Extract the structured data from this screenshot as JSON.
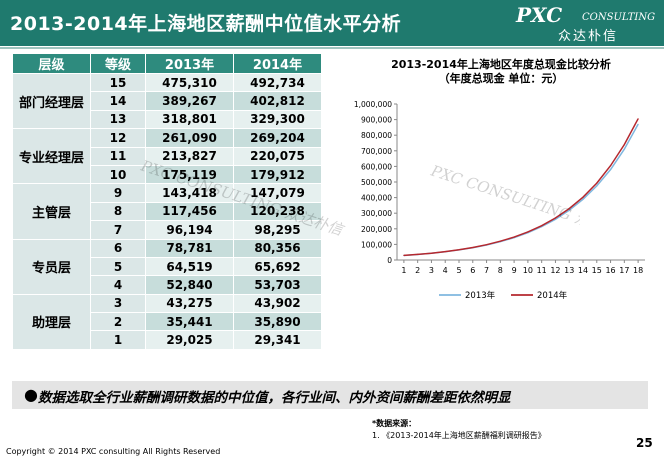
{
  "header": {
    "title": "2013-2014年上海地区薪酬中位值水平分析",
    "logo_text": "PXC",
    "logo_sub": "CONSULTING",
    "logo_cn": "众达朴信"
  },
  "table": {
    "headers": [
      "层级",
      "等级",
      "2013年",
      "2014年"
    ],
    "groups": [
      {
        "level": "部门经理层",
        "rows": [
          {
            "grade": "15",
            "y2013": "475,310",
            "y2014": "492,734"
          },
          {
            "grade": "14",
            "y2013": "389,267",
            "y2014": "402,812"
          },
          {
            "grade": "13",
            "y2013": "318,801",
            "y2014": "329,300"
          }
        ]
      },
      {
        "level": "专业经理层",
        "rows": [
          {
            "grade": "12",
            "y2013": "261,090",
            "y2014": "269,204"
          },
          {
            "grade": "11",
            "y2013": "213,827",
            "y2014": "220,075"
          },
          {
            "grade": "10",
            "y2013": "175,119",
            "y2014": "179,912"
          }
        ]
      },
      {
        "level": "主管层",
        "rows": [
          {
            "grade": "9",
            "y2013": "143,418",
            "y2014": "147,079"
          },
          {
            "grade": "8",
            "y2013": "117,456",
            "y2014": "120,238"
          },
          {
            "grade": "7",
            "y2013": "96,194",
            "y2014": "98,295"
          }
        ]
      },
      {
        "level": "专员层",
        "rows": [
          {
            "grade": "6",
            "y2013": "78,781",
            "y2014": "80,356"
          },
          {
            "grade": "5",
            "y2013": "64,519",
            "y2014": "65,692"
          },
          {
            "grade": "4",
            "y2013": "52,840",
            "y2014": "53,703"
          }
        ]
      },
      {
        "level": "助理层",
        "rows": [
          {
            "grade": "3",
            "y2013": "43,275",
            "y2014": "43,902"
          },
          {
            "grade": "2",
            "y2013": "35,441",
            "y2014": "35,890"
          },
          {
            "grade": "1",
            "y2013": "29,025",
            "y2014": "29,341"
          }
        ]
      }
    ]
  },
  "chart_data": {
    "type": "line",
    "title": "2013-2014年上海地区年度总现金比较分析",
    "subtitle": "（年度总现金 单位：元）",
    "x": [
      1,
      2,
      3,
      4,
      5,
      6,
      7,
      8,
      9,
      10,
      11,
      12,
      13,
      14,
      15,
      16,
      17,
      18
    ],
    "ylim": [
      0,
      1000000
    ],
    "yticks": [
      0,
      100000,
      200000,
      300000,
      400000,
      500000,
      600000,
      700000,
      800000,
      900000,
      1000000
    ],
    "ytick_labels": [
      "0",
      "100,000",
      "200,000",
      "300,000",
      "400,000",
      "500,000",
      "600,000",
      "700,000",
      "800,000",
      "900,000",
      "1,000,000"
    ],
    "legend_position": "bottom",
    "grid": false,
    "series": [
      {
        "name": "2013年",
        "color": "#7fb7df",
        "values": [
          29025,
          35441,
          43275,
          52840,
          64519,
          78781,
          96194,
          117456,
          143418,
          175119,
          213827,
          261090,
          318801,
          389267,
          475310,
          580000,
          710000,
          870000
        ]
      },
      {
        "name": "2014年",
        "color": "#b5282e",
        "values": [
          29341,
          35890,
          43902,
          53703,
          65692,
          80356,
          98295,
          120238,
          147079,
          179912,
          220075,
          269204,
          329300,
          402812,
          492734,
          605000,
          740000,
          905000
        ]
      }
    ]
  },
  "bullet": {
    "symbol": "●",
    "text": "数据选取全行业薪酬调研数据的中位值，各行业间、内外资间薪酬差距依然明显"
  },
  "footer": {
    "source_label": "*数据来源：",
    "source_item": "1.    《2013-2014年上海地区薪酬福利调研报告》",
    "copyright": "Copyright © 2014  PXC consulting All Rights Reserved",
    "page": "25"
  },
  "watermark": {
    "text": "PXC CONSULTING 众达朴信"
  }
}
